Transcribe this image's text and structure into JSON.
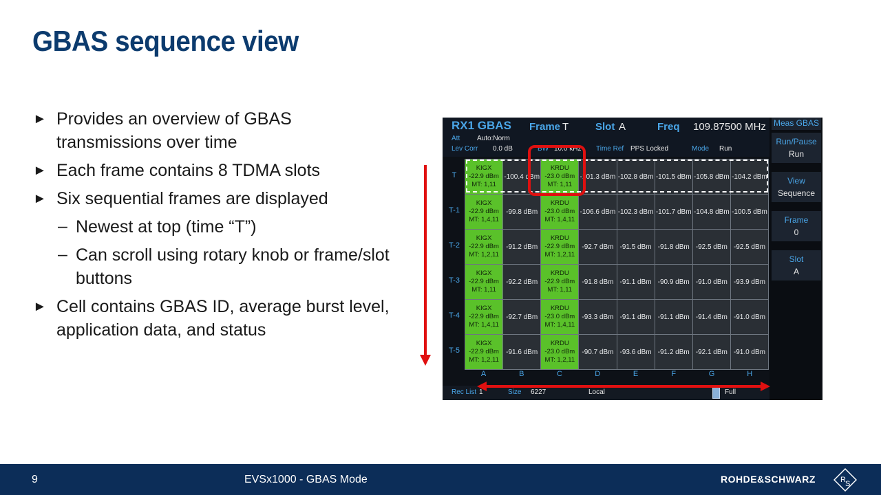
{
  "slide": {
    "title": "GBAS sequence view",
    "page_number": "9",
    "footer_text": "EVSx1000 - GBAS Mode",
    "brand": "ROHDE&SCHWARZ",
    "bullets": [
      {
        "level": 1,
        "text": "Provides an overview of GBAS transmissions over time"
      },
      {
        "level": 1,
        "text": "Each frame contains 8 TDMA slots"
      },
      {
        "level": 1,
        "text": "Six sequential frames are displayed"
      },
      {
        "level": 2,
        "text": "Newest at top (time “T”)"
      },
      {
        "level": 2,
        "text": "Can scroll using rotary knob or frame/slot buttons"
      },
      {
        "level": 1,
        "text": "Cell contains GBAS ID, average burst level, application data, and status"
      }
    ]
  },
  "instrument": {
    "header": {
      "app": "RX1 GBAS",
      "frame_label": "Frame",
      "frame_value": "T",
      "slot_label": "Slot",
      "slot_value": "A",
      "freq_label": "Freq",
      "freq_value": "109.87500  MHz",
      "att_label": "Att",
      "att_value": "Auto:Norm",
      "levcorr_label": "Lev Corr",
      "levcorr_value": "0.0  dB",
      "bw_label": "BW",
      "bw_value": "10.0 kHz",
      "timeref_label": "Time Ref",
      "timeref_value": "PPS Locked",
      "mode_label": "Mode",
      "mode_value": "Run"
    },
    "rows": [
      "T",
      "T-1",
      "T-2",
      "T-3",
      "T-4",
      "T-5"
    ],
    "columns": [
      "A",
      "B",
      "C",
      "D",
      "E",
      "F",
      "G",
      "H"
    ],
    "cells": [
      [
        "KIGX|-22.9 dBm|MT: 1,11",
        "-100.4 dBm",
        "KRDU|-23.0 dBm|MT: 1,11",
        "-101.3 dBm",
        "-102.8 dBm",
        "-101.5 dBm",
        "-105.8 dBm",
        "-104.2 dBm"
      ],
      [
        "KIGX|-22.9 dBm|MT: 1,4,11",
        "-99.8 dBm",
        "KRDU|-23.0 dBm|MT: 1,4,11",
        "-106.6 dBm",
        "-102.3 dBm",
        "-101.7 dBm",
        "-104.8 dBm",
        "-100.5 dBm"
      ],
      [
        "KIGX|-22.9 dBm|MT: 1,2,11",
        "-91.2 dBm",
        "KRDU|-22.9 dBm|MT: 1,2,11",
        "-92.7 dBm",
        "-91.5 dBm",
        "-91.8 dBm",
        "-92.5 dBm",
        "-92.5 dBm"
      ],
      [
        "KIGX|-22.9 dBm|MT: 1,11",
        "-92.2 dBm",
        "KRDU|-22.9 dBm|MT: 1,11",
        "-91.8 dBm",
        "-91.1 dBm",
        "-90.9 dBm",
        "-91.0 dBm",
        "-93.9 dBm"
      ],
      [
        "KIGX|-22.9 dBm|MT: 1,4,11",
        "-92.7 dBm",
        "KRDU|-23.0 dBm|MT: 1,4,11",
        "-93.3 dBm",
        "-91.1 dBm",
        "-91.1 dBm",
        "-91.4 dBm",
        "-91.0 dBm"
      ],
      [
        "KIGX|-22.9 dBm|MT: 1,2,11",
        "-91.6 dBm",
        "KRDU|-23.0 dBm|MT: 1,2,11",
        "-90.7 dBm",
        "-93.6 dBm",
        "-91.2 dBm",
        "-92.1 dBm",
        "-91.0 dBm"
      ]
    ],
    "status": {
      "reclist_label": "Rec List",
      "reclist_value": "1",
      "size_label": "Size",
      "size_value": "6227",
      "location": "Local",
      "fill_label": "Full"
    },
    "softkeys": [
      {
        "title": "Meas GBAS",
        "value": ""
      },
      {
        "title": "Run/Pause",
        "value": "Run"
      },
      {
        "title": "View",
        "value": "Sequence"
      },
      {
        "title": "Frame",
        "value": "0"
      },
      {
        "title": "Slot",
        "value": "A"
      }
    ]
  },
  "colors": {
    "title_blue": "#0c3b6e",
    "footer_blue": "#0c2d58",
    "cell_green": "#5ac12a",
    "annotation_red": "#e01010",
    "instrument_label_blue": "#4aa6e8"
  }
}
